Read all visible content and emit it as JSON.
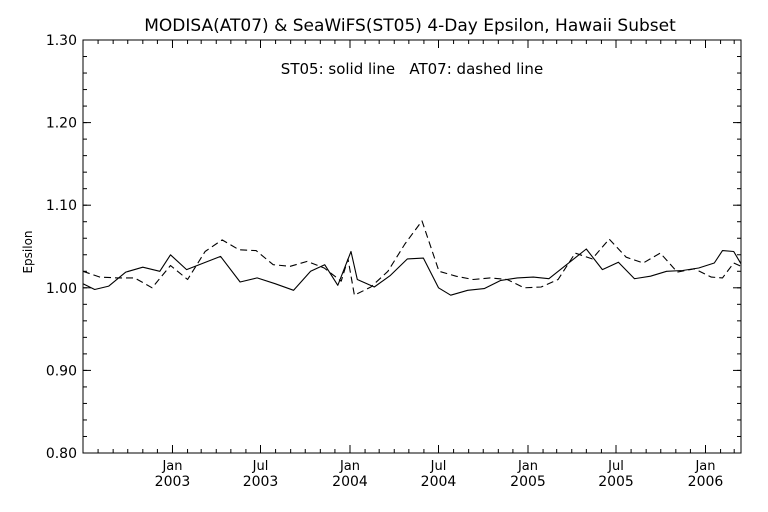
{
  "chart_data": {
    "type": "line",
    "title": "MODISA(AT07) & SeaWiFS(ST05) 4-Day Epsilon, Hawaii Subset",
    "annotation": "ST05: solid line   AT07: dashed line",
    "xlabel": "",
    "ylabel": "Epsilon",
    "ylim": [
      0.8,
      1.3
    ],
    "y_ticks": [
      0.8,
      0.9,
      1.0,
      1.1,
      1.2,
      1.3
    ],
    "y_tick_labels": [
      "0.80",
      "0.90",
      "1.00",
      "1.10",
      "1.20",
      "1.30"
    ],
    "xlim": [
      "2002-07-01",
      "2006-03-15"
    ],
    "x_ticks": [
      {
        "date": "2003-01-01",
        "month": "Jan",
        "year": "2003"
      },
      {
        "date": "2003-07-01",
        "month": "Jul",
        "year": "2003"
      },
      {
        "date": "2004-01-01",
        "month": "Jan",
        "year": "2004"
      },
      {
        "date": "2004-07-01",
        "month": "Jul",
        "year": "2004"
      },
      {
        "date": "2005-01-01",
        "month": "Jan",
        "year": "2005"
      },
      {
        "date": "2005-07-01",
        "month": "Jul",
        "year": "2005"
      },
      {
        "date": "2006-01-01",
        "month": "Jan",
        "year": "2006"
      }
    ],
    "grid": false,
    "series": [
      {
        "name": "ST05",
        "style": "solid",
        "color": "#000000",
        "points": [
          [
            "2002-07-01",
            1.005
          ],
          [
            "2002-07-25",
            0.998
          ],
          [
            "2002-08-23",
            1.002
          ],
          [
            "2002-09-27",
            1.019
          ],
          [
            "2002-11-01",
            1.025
          ],
          [
            "2002-12-06",
            1.02
          ],
          [
            "2002-12-28",
            1.04
          ],
          [
            "2003-01-30",
            1.022
          ],
          [
            "2003-03-06",
            1.03
          ],
          [
            "2003-04-10",
            1.038
          ],
          [
            "2003-05-20",
            1.007
          ],
          [
            "2003-06-24",
            1.012
          ],
          [
            "2003-07-31",
            1.005
          ],
          [
            "2003-09-07",
            0.997
          ],
          [
            "2003-10-12",
            1.02
          ],
          [
            "2003-11-10",
            1.028
          ],
          [
            "2003-12-07",
            1.003
          ],
          [
            "2004-01-03",
            1.044
          ],
          [
            "2004-01-16",
            1.01
          ],
          [
            "2004-02-20",
            1.001
          ],
          [
            "2004-03-24",
            1.015
          ],
          [
            "2004-04-28",
            1.035
          ],
          [
            "2004-05-31",
            1.036
          ],
          [
            "2004-07-01",
            1.0
          ],
          [
            "2004-07-26",
            0.991
          ],
          [
            "2004-08-30",
            0.997
          ],
          [
            "2004-10-03",
            0.999
          ],
          [
            "2004-11-06",
            1.009
          ],
          [
            "2004-12-10",
            1.012
          ],
          [
            "2005-01-12",
            1.013
          ],
          [
            "2005-02-13",
            1.011
          ],
          [
            "2005-05-01",
            1.047
          ],
          [
            "2005-06-03",
            1.022
          ],
          [
            "2005-07-06",
            1.031
          ],
          [
            "2005-08-08",
            1.011
          ],
          [
            "2005-09-10",
            1.014
          ],
          [
            "2005-10-13",
            1.02
          ],
          [
            "2005-11-15",
            1.021
          ],
          [
            "2005-12-18",
            1.024
          ],
          [
            "2006-01-19",
            1.03
          ],
          [
            "2006-02-05",
            1.045
          ],
          [
            "2006-02-28",
            1.044
          ],
          [
            "2006-03-15",
            1.029
          ]
        ]
      },
      {
        "name": "AT07",
        "style": "dashed",
        "color": "#000000",
        "points": [
          [
            "2002-07-01",
            1.02
          ],
          [
            "2002-08-05",
            1.013
          ],
          [
            "2002-09-10",
            1.012
          ],
          [
            "2002-10-15",
            1.012
          ],
          [
            "2002-11-20",
            1.0
          ],
          [
            "2002-12-28",
            1.027
          ],
          [
            "2003-02-01",
            1.01
          ],
          [
            "2003-03-09",
            1.044
          ],
          [
            "2003-04-13",
            1.058
          ],
          [
            "2003-05-18",
            1.046
          ],
          [
            "2003-06-22",
            1.045
          ],
          [
            "2003-07-27",
            1.028
          ],
          [
            "2003-08-31",
            1.026
          ],
          [
            "2003-10-05",
            1.032
          ],
          [
            "2003-11-09",
            1.024
          ],
          [
            "2003-12-14",
            1.008
          ],
          [
            "2003-12-28",
            1.035
          ],
          [
            "2004-01-10",
            0.991
          ],
          [
            "2004-02-13",
            1.001
          ],
          [
            "2004-03-19",
            1.02
          ],
          [
            "2004-04-23",
            1.053
          ],
          [
            "2004-05-28",
            1.081
          ],
          [
            "2004-07-02",
            1.02
          ],
          [
            "2004-08-06",
            1.014
          ],
          [
            "2004-09-10",
            1.01
          ],
          [
            "2004-10-15",
            1.012
          ],
          [
            "2004-11-19",
            1.01
          ],
          [
            "2004-12-24",
            1.0
          ],
          [
            "2005-01-28",
            1.001
          ],
          [
            "2005-03-04",
            1.01
          ],
          [
            "2005-04-08",
            1.042
          ],
          [
            "2005-05-13",
            1.035
          ],
          [
            "2005-06-17",
            1.059
          ],
          [
            "2005-07-22",
            1.037
          ],
          [
            "2005-08-26",
            1.03
          ],
          [
            "2005-09-30",
            1.042
          ],
          [
            "2005-11-04",
            1.019
          ],
          [
            "2005-12-09",
            1.023
          ],
          [
            "2006-01-13",
            1.013
          ],
          [
            "2006-02-05",
            1.012
          ],
          [
            "2006-02-28",
            1.03
          ],
          [
            "2006-03-15",
            1.026
          ]
        ]
      }
    ]
  }
}
